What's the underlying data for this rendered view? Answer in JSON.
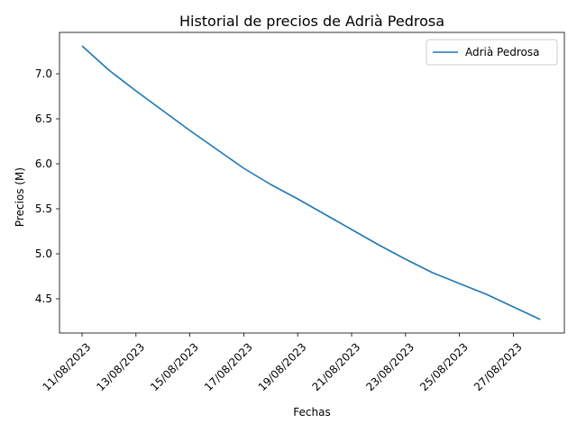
{
  "chart_data": {
    "type": "line",
    "title": "Historial de precios de Adrià Pedrosa",
    "xlabel": "Fechas",
    "ylabel": "Precios (M)",
    "x": [
      "11/08/2023",
      "12/08/2023",
      "13/08/2023",
      "14/08/2023",
      "15/08/2023",
      "16/08/2023",
      "17/08/2023",
      "18/08/2023",
      "19/08/2023",
      "20/08/2023",
      "21/08/2023",
      "22/08/2023",
      "23/08/2023",
      "24/08/2023",
      "25/08/2023",
      "26/08/2023",
      "27/08/2023",
      "28/08/2023"
    ],
    "x_tick_labels": [
      "11/08/2023",
      "13/08/2023",
      "15/08/2023",
      "17/08/2023",
      "19/08/2023",
      "21/08/2023",
      "23/08/2023",
      "25/08/2023",
      "27/08/2023"
    ],
    "y_ticks": [
      "4.5",
      "5.0",
      "5.5",
      "6.0",
      "6.5",
      "7.0"
    ],
    "ylim": [
      4.12,
      7.46
    ],
    "series": [
      {
        "name": "Adrià Pedrosa",
        "color": "#1f77b4",
        "values": [
          7.31,
          7.04,
          6.81,
          6.59,
          6.37,
          6.16,
          5.95,
          5.77,
          5.61,
          5.44,
          5.27,
          5.1,
          4.94,
          4.79,
          4.67,
          4.55,
          4.41,
          4.27
        ]
      }
    ],
    "legend_position": "top-right",
    "grid": false
  }
}
